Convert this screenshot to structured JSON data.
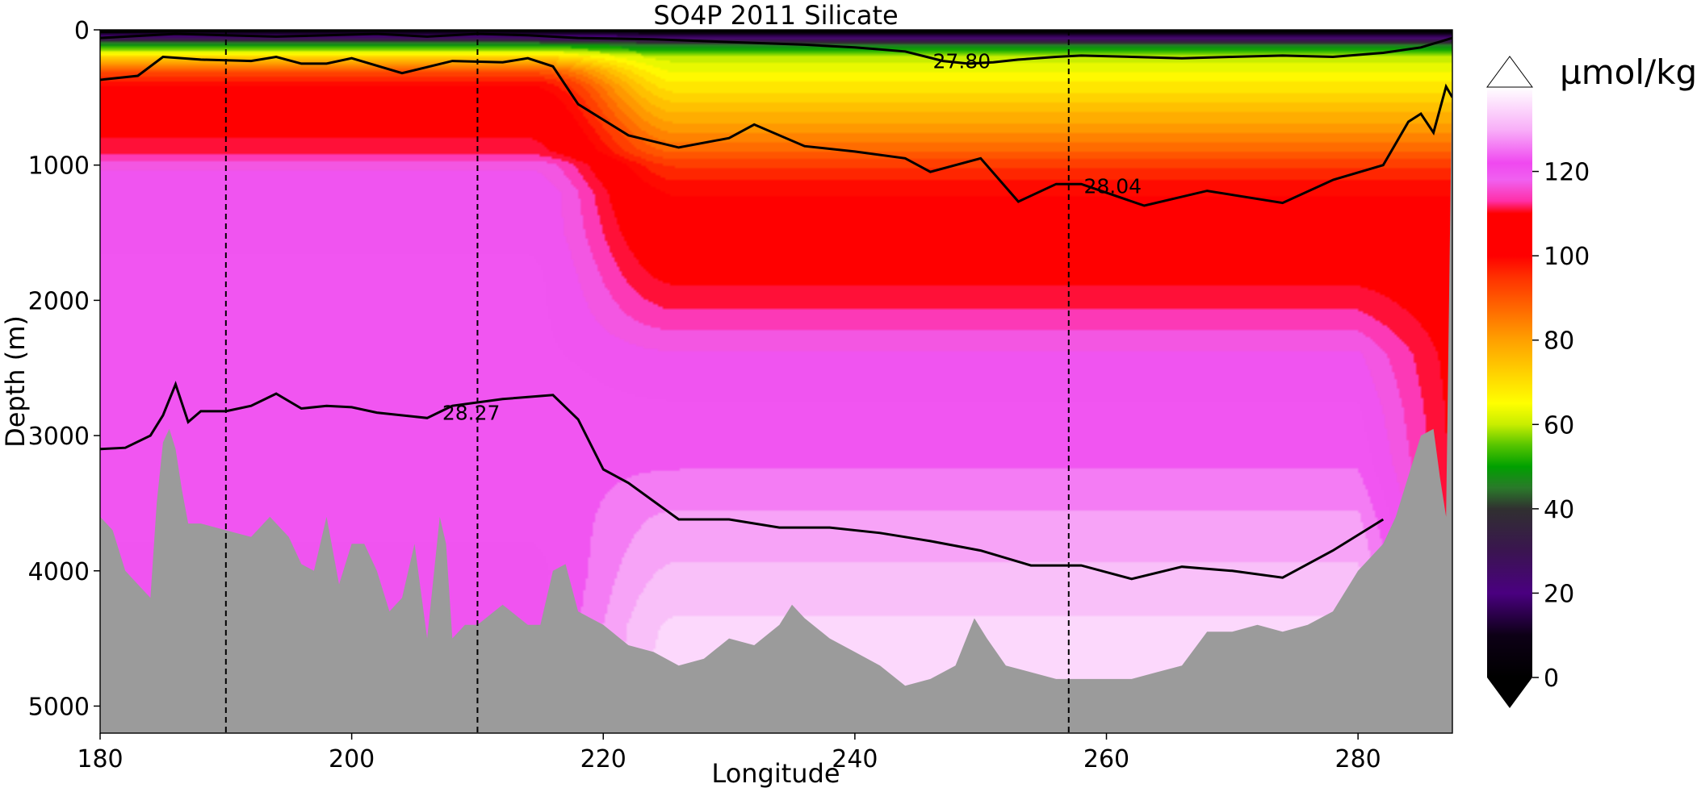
{
  "chart_data": {
    "type": "heatmap",
    "title": "SO4P 2011 Silicate",
    "xlabel": "Longitude",
    "ylabel": "Depth (m)",
    "xlim": [
      180,
      287.5
    ],
    "ylim": [
      5200,
      0
    ],
    "x_ticks": [
      180,
      200,
      220,
      240,
      260,
      280
    ],
    "y_ticks": [
      0,
      1000,
      2000,
      3000,
      4000,
      5000
    ],
    "colorbar": {
      "label": "µmol/kg",
      "range": [
        0,
        140
      ],
      "ticks": [
        0,
        20,
        40,
        60,
        80,
        100,
        120
      ],
      "extend": "both",
      "stops": [
        {
          "v": 0,
          "c": "#000000"
        },
        {
          "v": 10,
          "c": "#0d0016"
        },
        {
          "v": 20,
          "c": "#4a0080"
        },
        {
          "v": 30,
          "c": "#3a1550"
        },
        {
          "v": 40,
          "c": "#303030"
        },
        {
          "v": 45,
          "c": "#2a7a2a"
        },
        {
          "v": 50,
          "c": "#00a000"
        },
        {
          "v": 55,
          "c": "#55c400"
        },
        {
          "v": 60,
          "c": "#c8ee00"
        },
        {
          "v": 65,
          "c": "#ffff00"
        },
        {
          "v": 80,
          "c": "#ffa000"
        },
        {
          "v": 95,
          "c": "#ff3000"
        },
        {
          "v": 100,
          "c": "#ff0000"
        },
        {
          "v": 110,
          "c": "#ff0000"
        },
        {
          "v": 113,
          "c": "#ff2fa8"
        },
        {
          "v": 118,
          "c": "#f060f0"
        },
        {
          "v": 122,
          "c": "#f048f0"
        },
        {
          "v": 130,
          "c": "#f8b0f8"
        },
        {
          "v": 140,
          "c": "#ffffff"
        }
      ]
    },
    "station_lines": [
      190,
      210,
      257
    ],
    "field": {
      "lon": [
        180,
        184,
        188,
        192,
        196,
        200,
        204,
        208,
        212,
        216,
        218,
        220,
        224,
        228,
        232,
        236,
        240,
        244,
        248,
        252,
        256,
        260,
        264,
        268,
        272,
        276,
        280,
        284,
        287.5
      ],
      "depth": [
        0,
        50,
        100,
        200,
        300,
        400,
        500,
        700,
        900,
        1000,
        1200,
        1500,
        1800,
        2100,
        2400,
        2800,
        3200,
        3600,
        4000,
        4400,
        5200
      ],
      "west_profile": [
        2,
        20,
        46,
        72,
        90,
        100,
        104,
        108,
        111,
        118,
        121,
        121,
        122,
        122,
        122,
        123,
        123,
        122,
        121,
        121,
        121
      ],
      "east_profile": [
        2,
        18,
        42,
        60,
        64,
        68,
        72,
        80,
        88,
        94,
        100,
        104,
        108,
        113,
        119,
        122,
        124,
        128,
        131,
        134,
        136
      ],
      "transition_lon": [
        214,
        226
      ]
    },
    "bathymetry": {
      "lon": [
        180,
        181,
        182,
        183,
        184,
        184.5,
        185,
        185.5,
        186,
        186.5,
        187,
        188,
        190,
        192,
        193.5,
        195,
        196,
        197,
        198,
        199,
        200,
        201,
        202,
        203,
        204,
        205,
        206,
        207,
        207.5,
        208,
        209,
        210,
        212,
        214,
        215,
        216,
        217,
        218,
        219,
        220,
        222,
        224,
        226,
        228,
        230,
        232,
        234,
        235,
        236,
        238,
        240,
        242,
        244,
        246,
        248,
        249.5,
        250.5,
        252,
        254,
        256,
        258,
        260,
        262,
        264,
        266,
        268,
        270,
        272,
        274,
        276,
        278,
        280,
        282,
        283,
        284,
        285,
        286,
        286.5,
        287,
        287.5
      ],
      "depth": [
        3600,
        3700,
        4000,
        4100,
        4200,
        3500,
        3050,
        2950,
        3100,
        3400,
        3650,
        3650,
        3700,
        3750,
        3600,
        3750,
        3950,
        4000,
        3600,
        4100,
        3800,
        3800,
        4000,
        4300,
        4200,
        3800,
        4500,
        3600,
        3800,
        4500,
        4400,
        4400,
        4250,
        4400,
        4400,
        4000,
        3950,
        4300,
        4350,
        4400,
        4550,
        4600,
        4700,
        4650,
        4500,
        4550,
        4400,
        4250,
        4350,
        4500,
        4600,
        4700,
        4850,
        4800,
        4700,
        4350,
        4500,
        4700,
        4750,
        4800,
        4800,
        4800,
        4800,
        4750,
        4700,
        4450,
        4450,
        4400,
        4450,
        4400,
        4300,
        4000,
        3800,
        3600,
        3300,
        3000,
        2950,
        3300,
        3600,
        200
      ]
    },
    "isopycnals": [
      {
        "label": "27.80",
        "label_lon": 248.5,
        "label_depth": 230,
        "lon": [
          180,
          186,
          190,
          194,
          198,
          202,
          206,
          210,
          214,
          218,
          224,
          230,
          236,
          240,
          244,
          247,
          249,
          251,
          253,
          256,
          258,
          262,
          266,
          270,
          274,
          278,
          282,
          285,
          287.5
        ],
        "depth": [
          60,
          30,
          40,
          50,
          40,
          30,
          50,
          30,
          40,
          60,
          70,
          90,
          110,
          130,
          160,
          230,
          250,
          240,
          220,
          200,
          190,
          200,
          210,
          200,
          190,
          200,
          170,
          130,
          60
        ]
      },
      {
        "label": "28.04",
        "label_lon": 260.5,
        "label_depth": 1155,
        "lon": [
          180,
          183,
          185,
          188,
          192,
          194,
          196,
          198,
          200,
          204,
          208,
          212,
          214,
          216,
          218,
          222,
          226,
          230,
          232,
          236,
          240,
          244,
          246,
          250,
          253,
          256,
          258,
          263,
          268,
          274,
          278,
          282,
          284,
          285,
          286,
          287,
          287.5
        ],
        "depth": [
          370,
          340,
          200,
          220,
          230,
          200,
          250,
          250,
          210,
          320,
          230,
          240,
          210,
          270,
          550,
          780,
          870,
          800,
          700,
          860,
          900,
          950,
          1050,
          950,
          1270,
          1140,
          1140,
          1300,
          1190,
          1280,
          1110,
          1000,
          680,
          620,
          760,
          420,
          500
        ]
      },
      {
        "label": "28.27",
        "label_lon": 209.5,
        "label_depth": 2830,
        "lon": [
          180,
          182,
          184,
          185,
          186,
          187,
          188,
          190,
          192,
          194,
          196,
          198,
          200,
          202,
          206,
          208,
          212,
          216,
          218,
          220,
          222,
          226,
          230,
          234,
          238,
          242,
          246,
          250,
          254,
          258,
          262,
          266,
          270,
          274,
          278,
          282
        ],
        "depth": [
          3100,
          3090,
          3000,
          2850,
          2620,
          2900,
          2820,
          2820,
          2780,
          2690,
          2800,
          2780,
          2790,
          2830,
          2870,
          2780,
          2730,
          2700,
          2880,
          3250,
          3350,
          3620,
          3620,
          3680,
          3680,
          3720,
          3780,
          3850,
          3960,
          3960,
          4060,
          3970,
          4000,
          4050,
          3850,
          3620
        ]
      },
      {
        "label": "",
        "label_lon": 0,
        "label_depth": 0,
        "lon": [
          180,
          190,
          200,
          210,
          220,
          230,
          240,
          250,
          260,
          270,
          280,
          287.5
        ],
        "depth": [
          15,
          8,
          5,
          5,
          8,
          10,
          12,
          12,
          10,
          10,
          8,
          10
        ]
      }
    ]
  }
}
